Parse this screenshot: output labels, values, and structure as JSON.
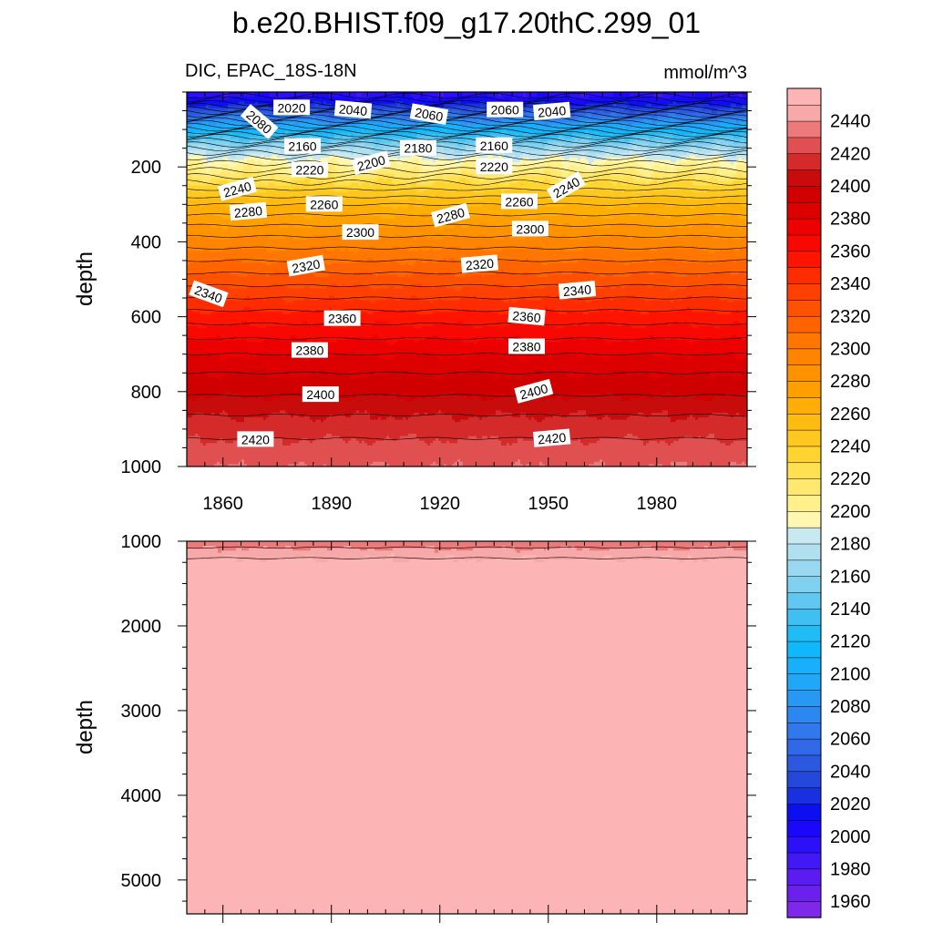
{
  "title": "b.e20.BHIST.f09_g17.20thC.299_01",
  "subtitle_left": "DIC, EPAC_18S-18N",
  "subtitle_right": "mmol/m^3",
  "chart_data": {
    "type": "heatmap",
    "variable": "DIC",
    "region": "EPAC_18S-18N",
    "units": "mmol/m^3",
    "xlim": [
      1850,
      2005
    ],
    "x_ticks": [
      1860,
      1890,
      1920,
      1950,
      1980
    ],
    "panels": [
      {
        "name": "upper",
        "ylabel": "depth",
        "ylim": [
          0,
          1000
        ],
        "y_ticks": [
          200,
          400,
          600,
          800,
          1000
        ],
        "profile_depth": [
          0,
          30,
          60,
          90,
          120,
          150,
          180,
          200,
          250,
          300,
          350,
          400,
          450,
          500,
          550,
          600,
          650,
          700,
          750,
          800,
          850,
          900,
          950,
          1000
        ],
        "profile_dic": [
          1990,
          2020,
          2060,
          2100,
          2140,
          2170,
          2195,
          2205,
          2235,
          2260,
          2278,
          2295,
          2310,
          2325,
          2340,
          2355,
          2368,
          2380,
          2390,
          2398,
          2408,
          2416,
          2424,
          2430
        ],
        "contour_labels": [
          {
            "year": 1870,
            "depth": 80,
            "text": "2080",
            "rot": 40
          },
          {
            "year": 1879,
            "depth": 42,
            "text": "2020",
            "rot": 0
          },
          {
            "year": 1896,
            "depth": 48,
            "text": "2040",
            "rot": 5
          },
          {
            "year": 1917,
            "depth": 60,
            "text": "2060",
            "rot": 10
          },
          {
            "year": 1938,
            "depth": 48,
            "text": "2060",
            "rot": 0
          },
          {
            "year": 1951,
            "depth": 52,
            "text": "2040",
            "rot": -5
          },
          {
            "year": 1882,
            "depth": 145,
            "text": "2160",
            "rot": 0
          },
          {
            "year": 1914,
            "depth": 150,
            "text": "2180",
            "rot": 0
          },
          {
            "year": 1935,
            "depth": 143,
            "text": "2160",
            "rot": 0
          },
          {
            "year": 1884,
            "depth": 208,
            "text": "2220",
            "rot": 0
          },
          {
            "year": 1901,
            "depth": 190,
            "text": "2200",
            "rot": -15
          },
          {
            "year": 1935,
            "depth": 200,
            "text": "2220",
            "rot": 0
          },
          {
            "year": 1864,
            "depth": 260,
            "text": "2240",
            "rot": -15
          },
          {
            "year": 1955,
            "depth": 255,
            "text": "2240",
            "rot": -30
          },
          {
            "year": 1867,
            "depth": 320,
            "text": "2280",
            "rot": -5
          },
          {
            "year": 1888,
            "depth": 300,
            "text": "2260",
            "rot": 0
          },
          {
            "year": 1923,
            "depth": 330,
            "text": "2280",
            "rot": -15
          },
          {
            "year": 1942,
            "depth": 293,
            "text": "2260",
            "rot": 0
          },
          {
            "year": 1898,
            "depth": 375,
            "text": "2300",
            "rot": 0
          },
          {
            "year": 1945,
            "depth": 366,
            "text": "2300",
            "rot": 0
          },
          {
            "year": 1883,
            "depth": 465,
            "text": "2320",
            "rot": -10
          },
          {
            "year": 1931,
            "depth": 460,
            "text": "2320",
            "rot": -5
          },
          {
            "year": 1856,
            "depth": 540,
            "text": "2340",
            "rot": 20
          },
          {
            "year": 1958,
            "depth": 530,
            "text": "2340",
            "rot": -5
          },
          {
            "year": 1893,
            "depth": 605,
            "text": "2360",
            "rot": 0
          },
          {
            "year": 1944,
            "depth": 600,
            "text": "2360",
            "rot": 5
          },
          {
            "year": 1884,
            "depth": 690,
            "text": "2380",
            "rot": 0
          },
          {
            "year": 1944,
            "depth": 680,
            "text": "2380",
            "rot": 0
          },
          {
            "year": 1887,
            "depth": 808,
            "text": "2400",
            "rot": 0
          },
          {
            "year": 1946,
            "depth": 800,
            "text": "2400",
            "rot": -15
          },
          {
            "year": 1869,
            "depth": 928,
            "text": "2420",
            "rot": 0
          },
          {
            "year": 1951,
            "depth": 925,
            "text": "2420",
            "rot": -5
          }
        ]
      },
      {
        "name": "lower",
        "ylabel": "depth",
        "ylim": [
          1000,
          5400
        ],
        "y_ticks": [
          1000,
          2000,
          3000,
          4000,
          5000
        ],
        "profile_depth": [
          1000,
          1050,
          1100,
          1150,
          1200,
          1250,
          5400
        ],
        "profile_dic": [
          2432,
          2437,
          2443,
          2447,
          2450,
          2455,
          2460
        ]
      }
    ],
    "colorbar": {
      "levels": [
        1960,
        1970,
        1980,
        1990,
        2000,
        2010,
        2020,
        2030,
        2040,
        2050,
        2060,
        2070,
        2080,
        2090,
        2100,
        2110,
        2120,
        2130,
        2140,
        2150,
        2160,
        2170,
        2180,
        2190,
        2200,
        2210,
        2220,
        2230,
        2240,
        2250,
        2260,
        2270,
        2280,
        2290,
        2300,
        2310,
        2320,
        2330,
        2340,
        2350,
        2360,
        2370,
        2380,
        2390,
        2400,
        2410,
        2420,
        2430,
        2440,
        2450
      ],
      "labels": [
        1960,
        1980,
        2000,
        2020,
        2040,
        2060,
        2080,
        2100,
        2120,
        2140,
        2160,
        2180,
        2200,
        2220,
        2240,
        2260,
        2280,
        2300,
        2320,
        2340,
        2360,
        2380,
        2400,
        2420,
        2440
      ],
      "colors": [
        "#7e28e8",
        "#6c20ec",
        "#5a1cf0",
        "#4218f4",
        "#2c10f8",
        "#1a08fc",
        "#0c10f0",
        "#1830e0",
        "#2448dc",
        "#2c58e0",
        "#3068e8",
        "#3078ec",
        "#2c88f0",
        "#2898f4",
        "#20a8f8",
        "#18b0fa",
        "#10b8fb",
        "#20bcf6",
        "#40c0f2",
        "#60c8f0",
        "#80d0f0",
        "#98d8f0",
        "#b0e0f0",
        "#c8e8f2",
        "#fff6b0",
        "#fff08c",
        "#ffe870",
        "#ffe050",
        "#ffd430",
        "#ffc820",
        "#ffbc10",
        "#ffae08",
        "#ffa000",
        "#ff9200",
        "#ff8400",
        "#ff7600",
        "#ff6400",
        "#ff5200",
        "#ff4000",
        "#ff2c00",
        "#ff1400",
        "#f80800",
        "#ec0000",
        "#dc0000",
        "#d00000",
        "#c80c0c",
        "#d42a2a",
        "#e05050",
        "#ec7a7a",
        "#f7a8a8",
        "#fcb4b4"
      ]
    }
  }
}
